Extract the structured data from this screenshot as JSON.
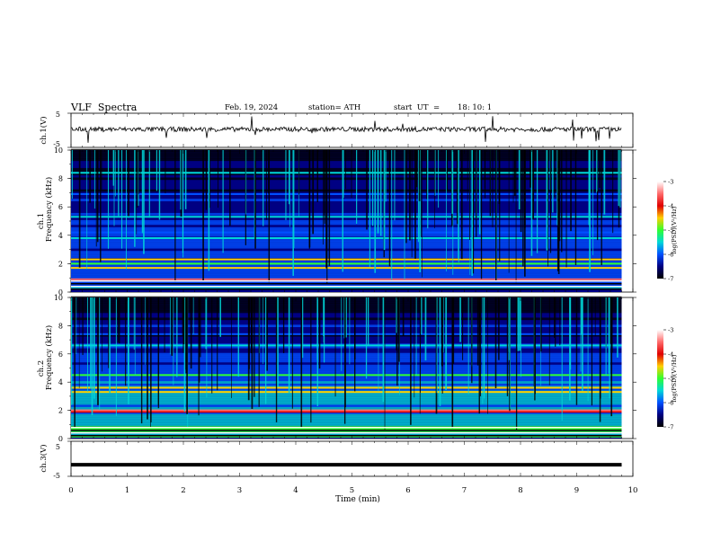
{
  "header": {
    "title": "VLF  Spectra",
    "date": "Feb. 19, 2024",
    "station": "station= ATH",
    "start_label": "start  UT  =",
    "start_value": "18: 10: 1"
  },
  "colors": {
    "trace": "#000000",
    "spectrogram_background": "#00008c",
    "colorbar_stops": [
      "#ffffff",
      "#ff6b6b",
      "#e00000",
      "#ffcf00",
      "#30ff30",
      "#00d8d8",
      "#0050ff",
      "#000080",
      "#000000"
    ]
  },
  "chart_data": [
    {
      "type": "line",
      "ylabel": "ch.1(V)",
      "ylim": [
        -5,
        5
      ],
      "yticks": [
        "5",
        "-5"
      ],
      "xlim": [
        0,
        10
      ],
      "series": [
        {
          "description_free": true,
          "baseline": 0.3
        }
      ]
    },
    {
      "type": "heatmap",
      "ylabel_lines": [
        "ch.1",
        "Frequency  (kHz)"
      ],
      "ylim": [
        0,
        10
      ],
      "yticks": [
        "0",
        "2",
        "4",
        "6",
        "8",
        "10"
      ],
      "xlim": [
        0,
        10
      ],
      "data_extent_x": [
        0,
        9.8
      ],
      "colorbar": {
        "label": "log(PSD)(V²/Hz)",
        "range": [
          -7,
          -3
        ],
        "ticks": [
          "-3",
          "-4",
          "-5",
          "-6",
          "-7"
        ]
      },
      "horizontal_bands_khz": [
        {
          "freq": 0.9,
          "level": -3.5
        },
        {
          "freq": 1.7,
          "level": -4.6
        },
        {
          "freq": 2.0,
          "level": -5.0
        },
        {
          "freq": 2.3,
          "level": -4.5
        },
        {
          "freq": 3.8,
          "level": -5.4
        },
        {
          "freq": 4.2,
          "level": -5.8
        },
        {
          "freq": 5.3,
          "level": -5.6
        },
        {
          "freq": 6.9,
          "level": -5.9
        },
        {
          "freq": 8.4,
          "level": -5.3
        }
      ]
    },
    {
      "type": "heatmap",
      "ylabel_lines": [
        "ch.2",
        "Frequency  (kHz)"
      ],
      "ylim": [
        0,
        10
      ],
      "yticks": [
        "0",
        "2",
        "4",
        "6",
        "8",
        "10"
      ],
      "xlim": [
        0,
        10
      ],
      "data_extent_x": [
        0,
        9.8
      ],
      "colorbar": {
        "label": "log(PSD)(V²/Hz)",
        "range": [
          -7,
          -3
        ],
        "ticks": [
          "-3",
          "-4",
          "-5",
          "-6",
          "-7"
        ]
      },
      "horizontal_bands_khz": [
        {
          "freq": 0.7,
          "level": -4.8
        },
        {
          "freq": 1.9,
          "level": -4.0
        },
        {
          "freq": 2.0,
          "level": -3.6
        },
        {
          "freq": 3.3,
          "level": -4.3
        },
        {
          "freq": 3.6,
          "level": -4.5
        },
        {
          "freq": 4.5,
          "level": -5.0
        },
        {
          "freq": 6.6,
          "level": -5.7
        },
        {
          "freq": 7.4,
          "level": -5.8
        }
      ]
    },
    {
      "type": "line",
      "ylabel": "ch.3(V)",
      "ylim": [
        -5,
        5
      ],
      "yticks": [
        "5",
        "-5"
      ],
      "xlim": [
        0,
        10
      ],
      "series": [
        {
          "constant": -1.7
        }
      ]
    }
  ],
  "xaxis": {
    "label": "Time  (min)",
    "ticks": [
      "0",
      "1",
      "2",
      "3",
      "4",
      "5",
      "6",
      "7",
      "8",
      "9",
      "10"
    ]
  }
}
